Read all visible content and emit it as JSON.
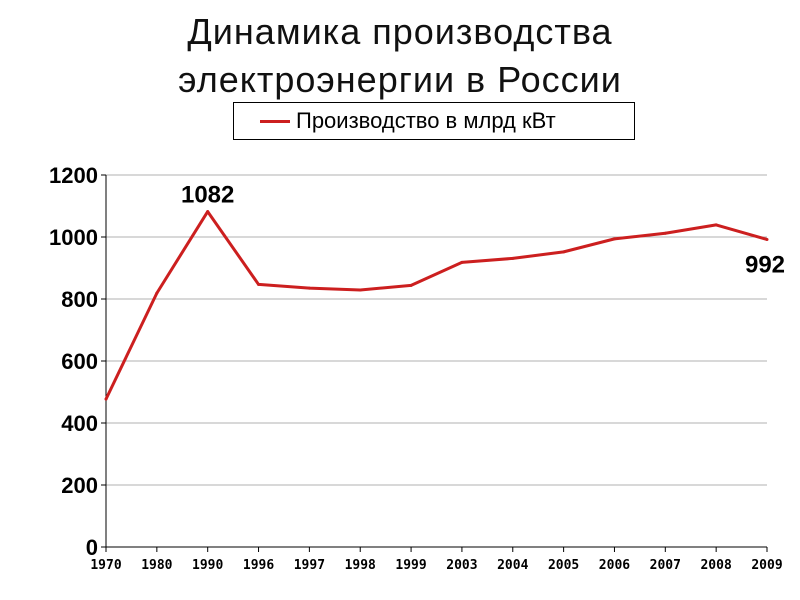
{
  "chart_data": {
    "type": "line",
    "title": [
      "Динамика производства",
      "электроэнергии в России"
    ],
    "categories": [
      "1970",
      "1980",
      "1990",
      "1996",
      "1997",
      "1998",
      "1999",
      "2003",
      "2004",
      "2005",
      "2006",
      "2007",
      "2008",
      "2009"
    ],
    "series": [
      {
        "name": "Производство в млрд кВт",
        "values": [
          477,
          819,
          1082,
          847,
          835,
          829,
          844,
          918,
          931,
          952,
          994,
          1012,
          1039,
          992
        ],
        "color": "#cc1f1f"
      }
    ],
    "data_labels": [
      {
        "index": 2,
        "text": "1082"
      },
      {
        "index": 13,
        "text": "992"
      }
    ],
    "yticks": [
      "0",
      "200",
      "400",
      "600",
      "800",
      "1000",
      "1200"
    ],
    "ylim": [
      0,
      1200
    ],
    "grid": true,
    "legend": "top"
  }
}
